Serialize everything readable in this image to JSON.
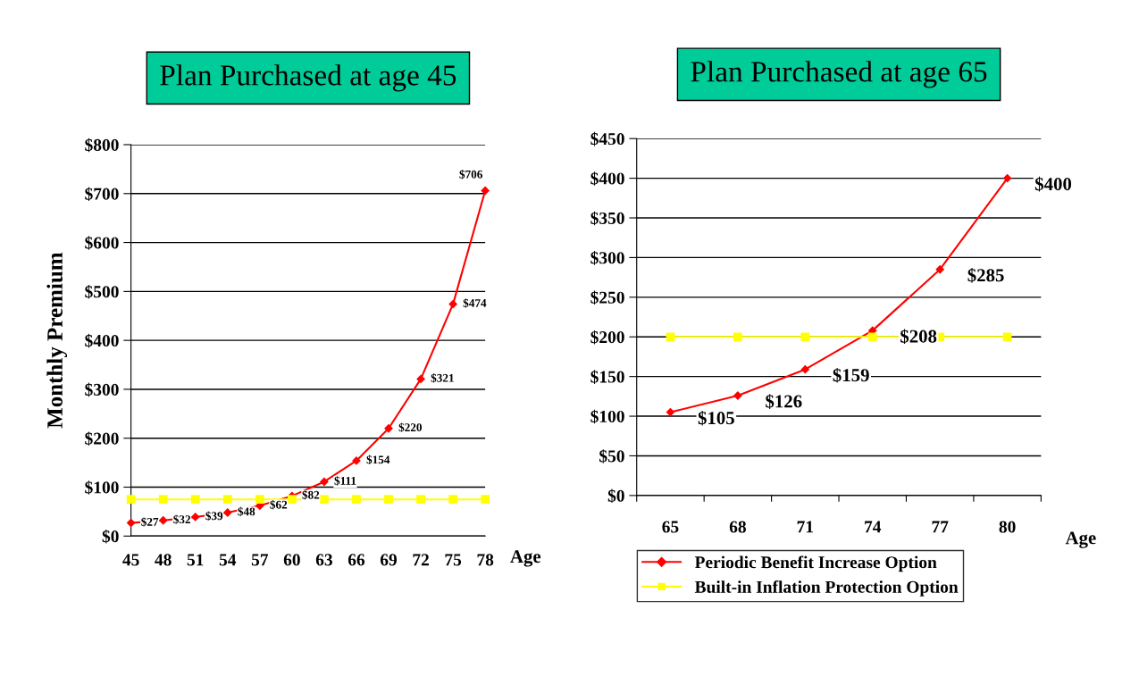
{
  "chart_data": [
    {
      "type": "line",
      "title": "Plan Purchased at age 45",
      "xlabel": "Age",
      "ylabel": "Monthly Premium",
      "categories": [
        "45",
        "48",
        "51",
        "54",
        "57",
        "60",
        "63",
        "66",
        "69",
        "72",
        "75",
        "78"
      ],
      "series": [
        {
          "color": "#ff0000",
          "marker": "diamond",
          "values": [
            27,
            32,
            39,
            48,
            62,
            82,
            111,
            154,
            220,
            321,
            474,
            706
          ],
          "value_labels": [
            "$27",
            "$32",
            "$39",
            "$48",
            "$62",
            "$82",
            "$111",
            "$154",
            "$220",
            "$321",
            "$474",
            "$706"
          ]
        },
        {
          "color": "#ffff00",
          "marker": "square",
          "values": [
            75,
            75,
            75,
            75,
            75,
            75,
            75,
            75,
            75,
            75,
            75,
            75
          ]
        }
      ],
      "ylim": [
        0,
        800
      ],
      "yticks": [
        {
          "value": 0,
          "label": "$0"
        },
        {
          "value": 100,
          "label": "$100"
        },
        {
          "value": 200,
          "label": "$200"
        },
        {
          "value": 300,
          "label": "$300"
        },
        {
          "value": 400,
          "label": "$400"
        },
        {
          "value": 500,
          "label": "$500"
        },
        {
          "value": 600,
          "label": "$600"
        },
        {
          "value": 700,
          "label": "$700"
        },
        {
          "value": 800,
          "label": "$800"
        }
      ],
      "grid": "y",
      "legend": false
    },
    {
      "type": "line",
      "title": "Plan Purchased at age 65",
      "xlabel": "Age",
      "categories": [
        "65",
        "68",
        "71",
        "74",
        "77",
        "80"
      ],
      "series": [
        {
          "name": "Periodic Benefit Increase Option",
          "color": "#ff0000",
          "marker": "diamond",
          "values": [
            105,
            126,
            159,
            208,
            285,
            400
          ],
          "value_labels": [
            "$105",
            "$126",
            "$159",
            "$208",
            "$285",
            "$400"
          ]
        },
        {
          "name": "Built-in Inflation Protection Option",
          "color": "#ffff00",
          "marker": "square",
          "values": [
            200,
            200,
            200,
            200,
            200,
            200
          ]
        }
      ],
      "ylim": [
        0,
        450
      ],
      "yticks": [
        {
          "value": 0,
          "label": "$0"
        },
        {
          "value": 50,
          "label": "$50"
        },
        {
          "value": 100,
          "label": "$100"
        },
        {
          "value": 150,
          "label": "$150"
        },
        {
          "value": 200,
          "label": "$200"
        },
        {
          "value": 250,
          "label": "$250"
        },
        {
          "value": 300,
          "label": "$300"
        },
        {
          "value": 350,
          "label": "$350"
        },
        {
          "value": 400,
          "label": "$400"
        },
        {
          "value": 450,
          "label": "$450"
        }
      ],
      "grid": "y",
      "legend": "bottom"
    }
  ]
}
